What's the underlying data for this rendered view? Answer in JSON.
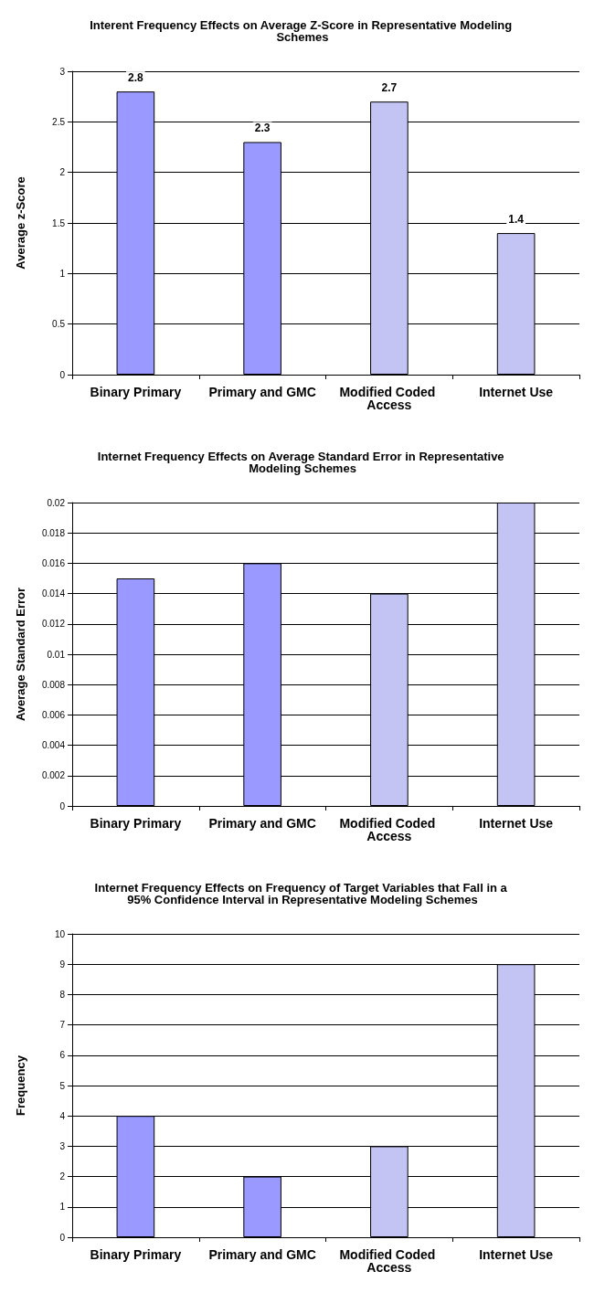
{
  "chart_data": [
    {
      "type": "bar",
      "title": "Interent Frequency Effects on Average Z-Score in Representative Modeling Schemes",
      "ylabel": "Average z-Score",
      "categories": [
        "Binary Primary",
        "Primary and GMC",
        "Modified Coded Access",
        "Internet Use"
      ],
      "values": [
        2.8,
        2.3,
        2.7,
        1.4
      ],
      "colors": [
        "#9999ff",
        "#9999ff",
        "#c4c4f4",
        "#c4c4f4"
      ],
      "ylim": [
        0,
        3
      ],
      "yticks": [
        0,
        0.5,
        1,
        1.5,
        2,
        2.5,
        3
      ],
      "grid": "y",
      "data_labels": true
    },
    {
      "type": "bar",
      "title": "Internet Frequency Effects on Average Standard Error in Representative Modeling Schemes",
      "ylabel": "Average Standard Error",
      "categories": [
        "Binary Primary",
        "Primary and GMC",
        "Modified Coded Access",
        "Internet Use"
      ],
      "values": [
        0.015,
        0.016,
        0.014,
        0.02
      ],
      "colors": [
        "#9999ff",
        "#9999ff",
        "#c4c4f4",
        "#c4c4f4"
      ],
      "ylim": [
        0,
        0.02
      ],
      "yticks": [
        0,
        0.002,
        0.004,
        0.006,
        0.008,
        0.01,
        0.012,
        0.014,
        0.016,
        0.018,
        0.02
      ],
      "grid": "y"
    },
    {
      "type": "bar",
      "title": "Internet Frequency Effects on Frequency of Target Variables that Fall in a 95% Confidence Interval in Representative Modeling Schemes",
      "ylabel": "Frequency",
      "categories": [
        "Binary Primary",
        "Primary and GMC",
        "Modified Coded Access",
        "Internet Use"
      ],
      "values": [
        4,
        2,
        3,
        9
      ],
      "colors": [
        "#9999ff",
        "#9999ff",
        "#c4c4f4",
        "#c4c4f4"
      ],
      "ylim": [
        0,
        10
      ],
      "yticks": [
        0,
        1,
        2,
        3,
        4,
        5,
        6,
        7,
        8,
        9,
        10
      ],
      "grid": "y"
    }
  ]
}
